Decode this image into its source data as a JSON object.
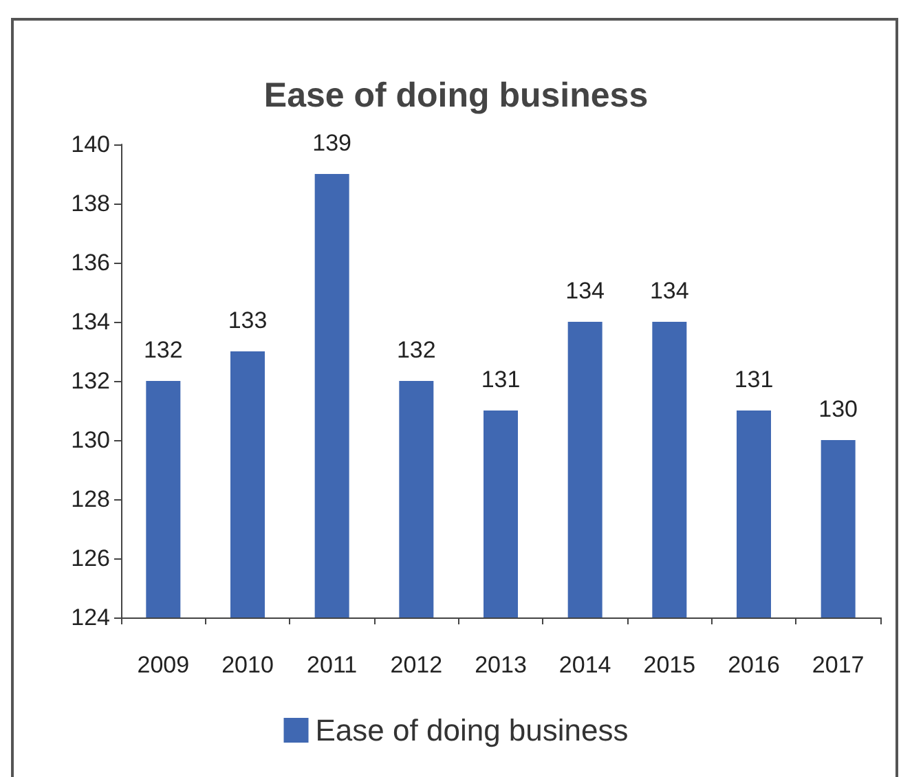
{
  "chart_data": {
    "type": "bar",
    "title": "Ease of doing business",
    "categories": [
      "2009",
      "2010",
      "2011",
      "2012",
      "2013",
      "2014",
      "2015",
      "2016",
      "2017"
    ],
    "series": [
      {
        "name": "Ease of doing business",
        "color": "#4068b2",
        "values": [
          132,
          133,
          139,
          132,
          131,
          134,
          134,
          131,
          130
        ]
      }
    ],
    "ylim": [
      124,
      140
    ],
    "yticks": [
      124,
      126,
      128,
      130,
      132,
      134,
      136,
      138,
      140
    ],
    "data_labels": true,
    "legend": "bottom",
    "grid": false
  }
}
